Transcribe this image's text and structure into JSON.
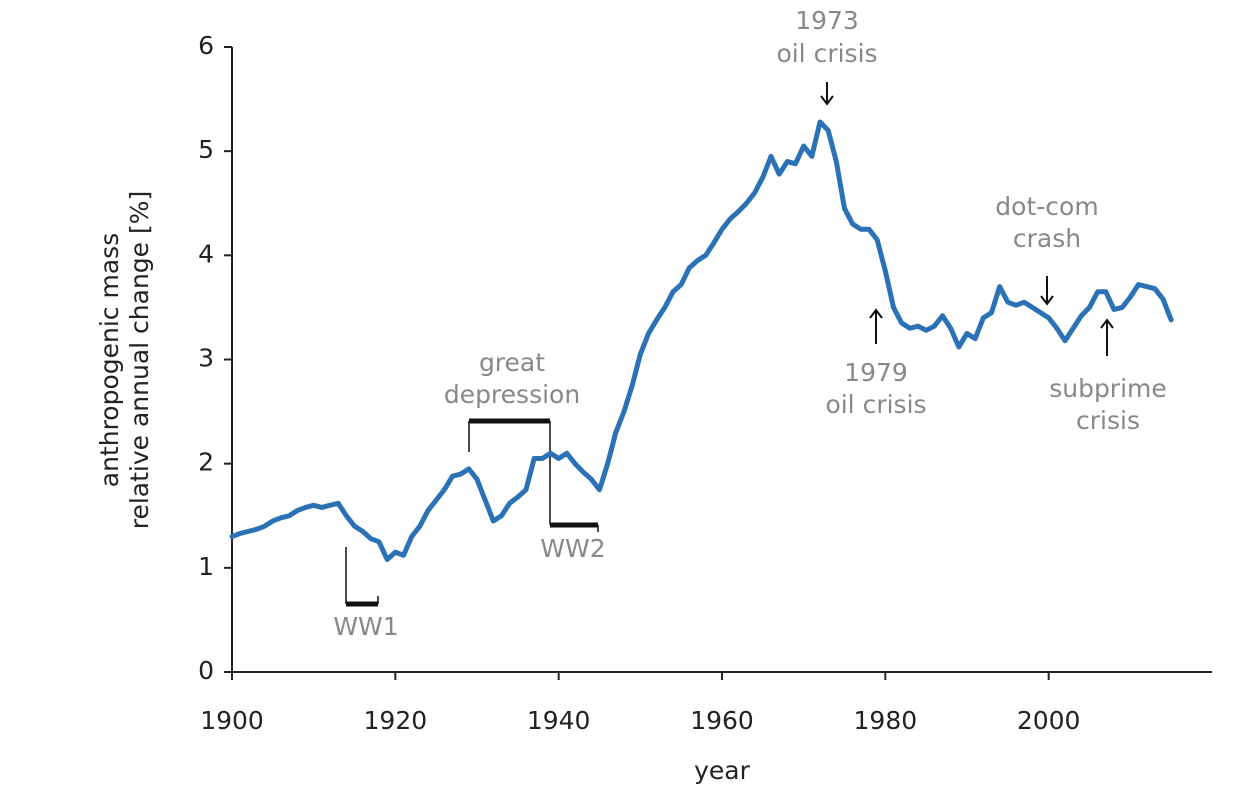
{
  "chart_data": {
    "type": "line",
    "ylabel": [
      "anthropogenic mass",
      "relative annual change [%]"
    ],
    "xlabel": "year",
    "xlim": [
      1900,
      2020
    ],
    "ylim": [
      0,
      6
    ],
    "xticks": [
      1900,
      1920,
      1940,
      1960,
      1980,
      2000
    ],
    "yticks": [
      0,
      1,
      2,
      3,
      4,
      5,
      6
    ],
    "series": [
      {
        "name": "anthropogenic mass",
        "color": "#2a72b5",
        "x": [
          1900,
          1901,
          1902,
          1903,
          1904,
          1905,
          1906,
          1907,
          1908,
          1909,
          1910,
          1911,
          1912,
          1913,
          1914,
          1915,
          1916,
          1917,
          1918,
          1919,
          1920,
          1921,
          1922,
          1923,
          1924,
          1925,
          1926,
          1927,
          1928,
          1929,
          1930,
          1931,
          1932,
          1933,
          1934,
          1935,
          1936,
          1937,
          1938,
          1939,
          1940,
          1941,
          1942,
          1943,
          1944,
          1945,
          1946,
          1947,
          1948,
          1949,
          1950,
          1951,
          1952,
          1953,
          1954,
          1955,
          1956,
          1957,
          1958,
          1959,
          1960,
          1961,
          1962,
          1963,
          1964,
          1965,
          1966,
          1967,
          1968,
          1969,
          1970,
          1971,
          1972,
          1973,
          1974,
          1975,
          1976,
          1977,
          1978,
          1979,
          1980,
          1981,
          1982,
          1983,
          1984,
          1985,
          1986,
          1987,
          1988,
          1989,
          1990,
          1991,
          1992,
          1993,
          1994,
          1995,
          1996,
          1997,
          1998,
          1999,
          2000,
          2001,
          2002,
          2003,
          2004,
          2005,
          2006,
          2007,
          2008,
          2009,
          2010,
          2011,
          2012,
          2013,
          2014,
          2015
        ],
        "values": [
          1.3,
          1.33,
          1.35,
          1.37,
          1.4,
          1.45,
          1.48,
          1.5,
          1.55,
          1.58,
          1.6,
          1.58,
          1.6,
          1.62,
          1.5,
          1.4,
          1.35,
          1.28,
          1.25,
          1.08,
          1.15,
          1.12,
          1.3,
          1.4,
          1.55,
          1.65,
          1.75,
          1.88,
          1.9,
          1.95,
          1.85,
          1.65,
          1.45,
          1.5,
          1.62,
          1.68,
          1.75,
          2.05,
          2.05,
          2.1,
          2.05,
          2.1,
          2.0,
          1.92,
          1.85,
          1.75,
          2.0,
          2.3,
          2.5,
          2.75,
          3.05,
          3.25,
          3.38,
          3.5,
          3.65,
          3.72,
          3.88,
          3.95,
          4.0,
          4.12,
          4.25,
          4.35,
          4.42,
          4.5,
          4.6,
          4.75,
          4.95,
          4.78,
          4.9,
          4.88,
          5.05,
          4.95,
          5.28,
          5.2,
          4.9,
          4.45,
          4.3,
          4.25,
          4.25,
          4.15,
          3.85,
          3.5,
          3.35,
          3.3,
          3.32,
          3.28,
          3.32,
          3.42,
          3.3,
          3.12,
          3.25,
          3.2,
          3.4,
          3.45,
          3.7,
          3.55,
          3.52,
          3.55,
          3.5,
          3.45,
          3.4,
          3.3,
          3.18,
          3.3,
          3.42,
          3.5,
          3.65,
          3.65,
          3.48,
          3.5,
          3.6,
          3.72,
          3.7,
          3.68,
          3.58,
          3.38
        ]
      }
    ],
    "annotations": [
      {
        "lines": [
          "1973",
          "oil crisis"
        ]
      },
      {
        "lines": [
          "dot-com",
          "crash"
        ]
      },
      {
        "lines": [
          "1979",
          "oil crisis"
        ]
      },
      {
        "lines": [
          "subprime",
          "crisis"
        ]
      },
      {
        "lines": [
          "great",
          "depression"
        ]
      },
      {
        "lines": [
          "WW1"
        ]
      },
      {
        "lines": [
          "WW2"
        ]
      }
    ]
  }
}
